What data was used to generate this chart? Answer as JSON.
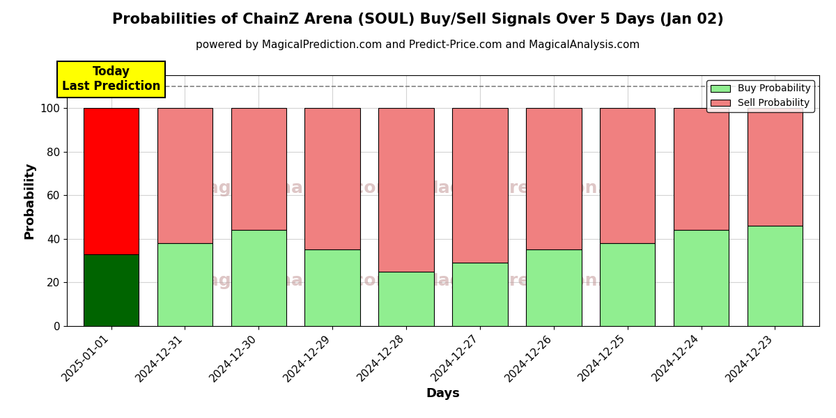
{
  "title": "Probabilities of ChainZ Arena (SOUL) Buy/Sell Signals Over 5 Days (Jan 02)",
  "subtitle": "powered by MagicalPrediction.com and Predict-Price.com and MagicalAnalysis.com",
  "xlabel": "Days",
  "ylabel": "Probability",
  "categories": [
    "2025-01-01",
    "2024-12-31",
    "2024-12-30",
    "2024-12-29",
    "2024-12-28",
    "2024-12-27",
    "2024-12-26",
    "2024-12-25",
    "2024-12-24",
    "2024-12-23"
  ],
  "buy_values": [
    33,
    38,
    44,
    35,
    25,
    29,
    35,
    38,
    44,
    46
  ],
  "sell_values": [
    67,
    62,
    56,
    65,
    75,
    71,
    65,
    62,
    56,
    54
  ],
  "today_bar_index": 0,
  "today_buy_color": "#006400",
  "today_sell_color": "#FF0000",
  "other_buy_color": "#90EE90",
  "other_sell_color": "#F08080",
  "bar_edge_color": "#000000",
  "today_label_bg": "#FFFF00",
  "today_label_text": "Today\nLast Prediction",
  "ylim": [
    0,
    115
  ],
  "yticks": [
    0,
    20,
    40,
    60,
    80,
    100
  ],
  "dashed_line_y": 110,
  "legend_buy_label": "Buy Probability",
  "legend_sell_label": "Sell Probability",
  "watermark_color": "#c8a0a0",
  "title_fontsize": 15,
  "subtitle_fontsize": 11,
  "axis_label_fontsize": 13,
  "tick_fontsize": 11,
  "bar_width": 0.75
}
